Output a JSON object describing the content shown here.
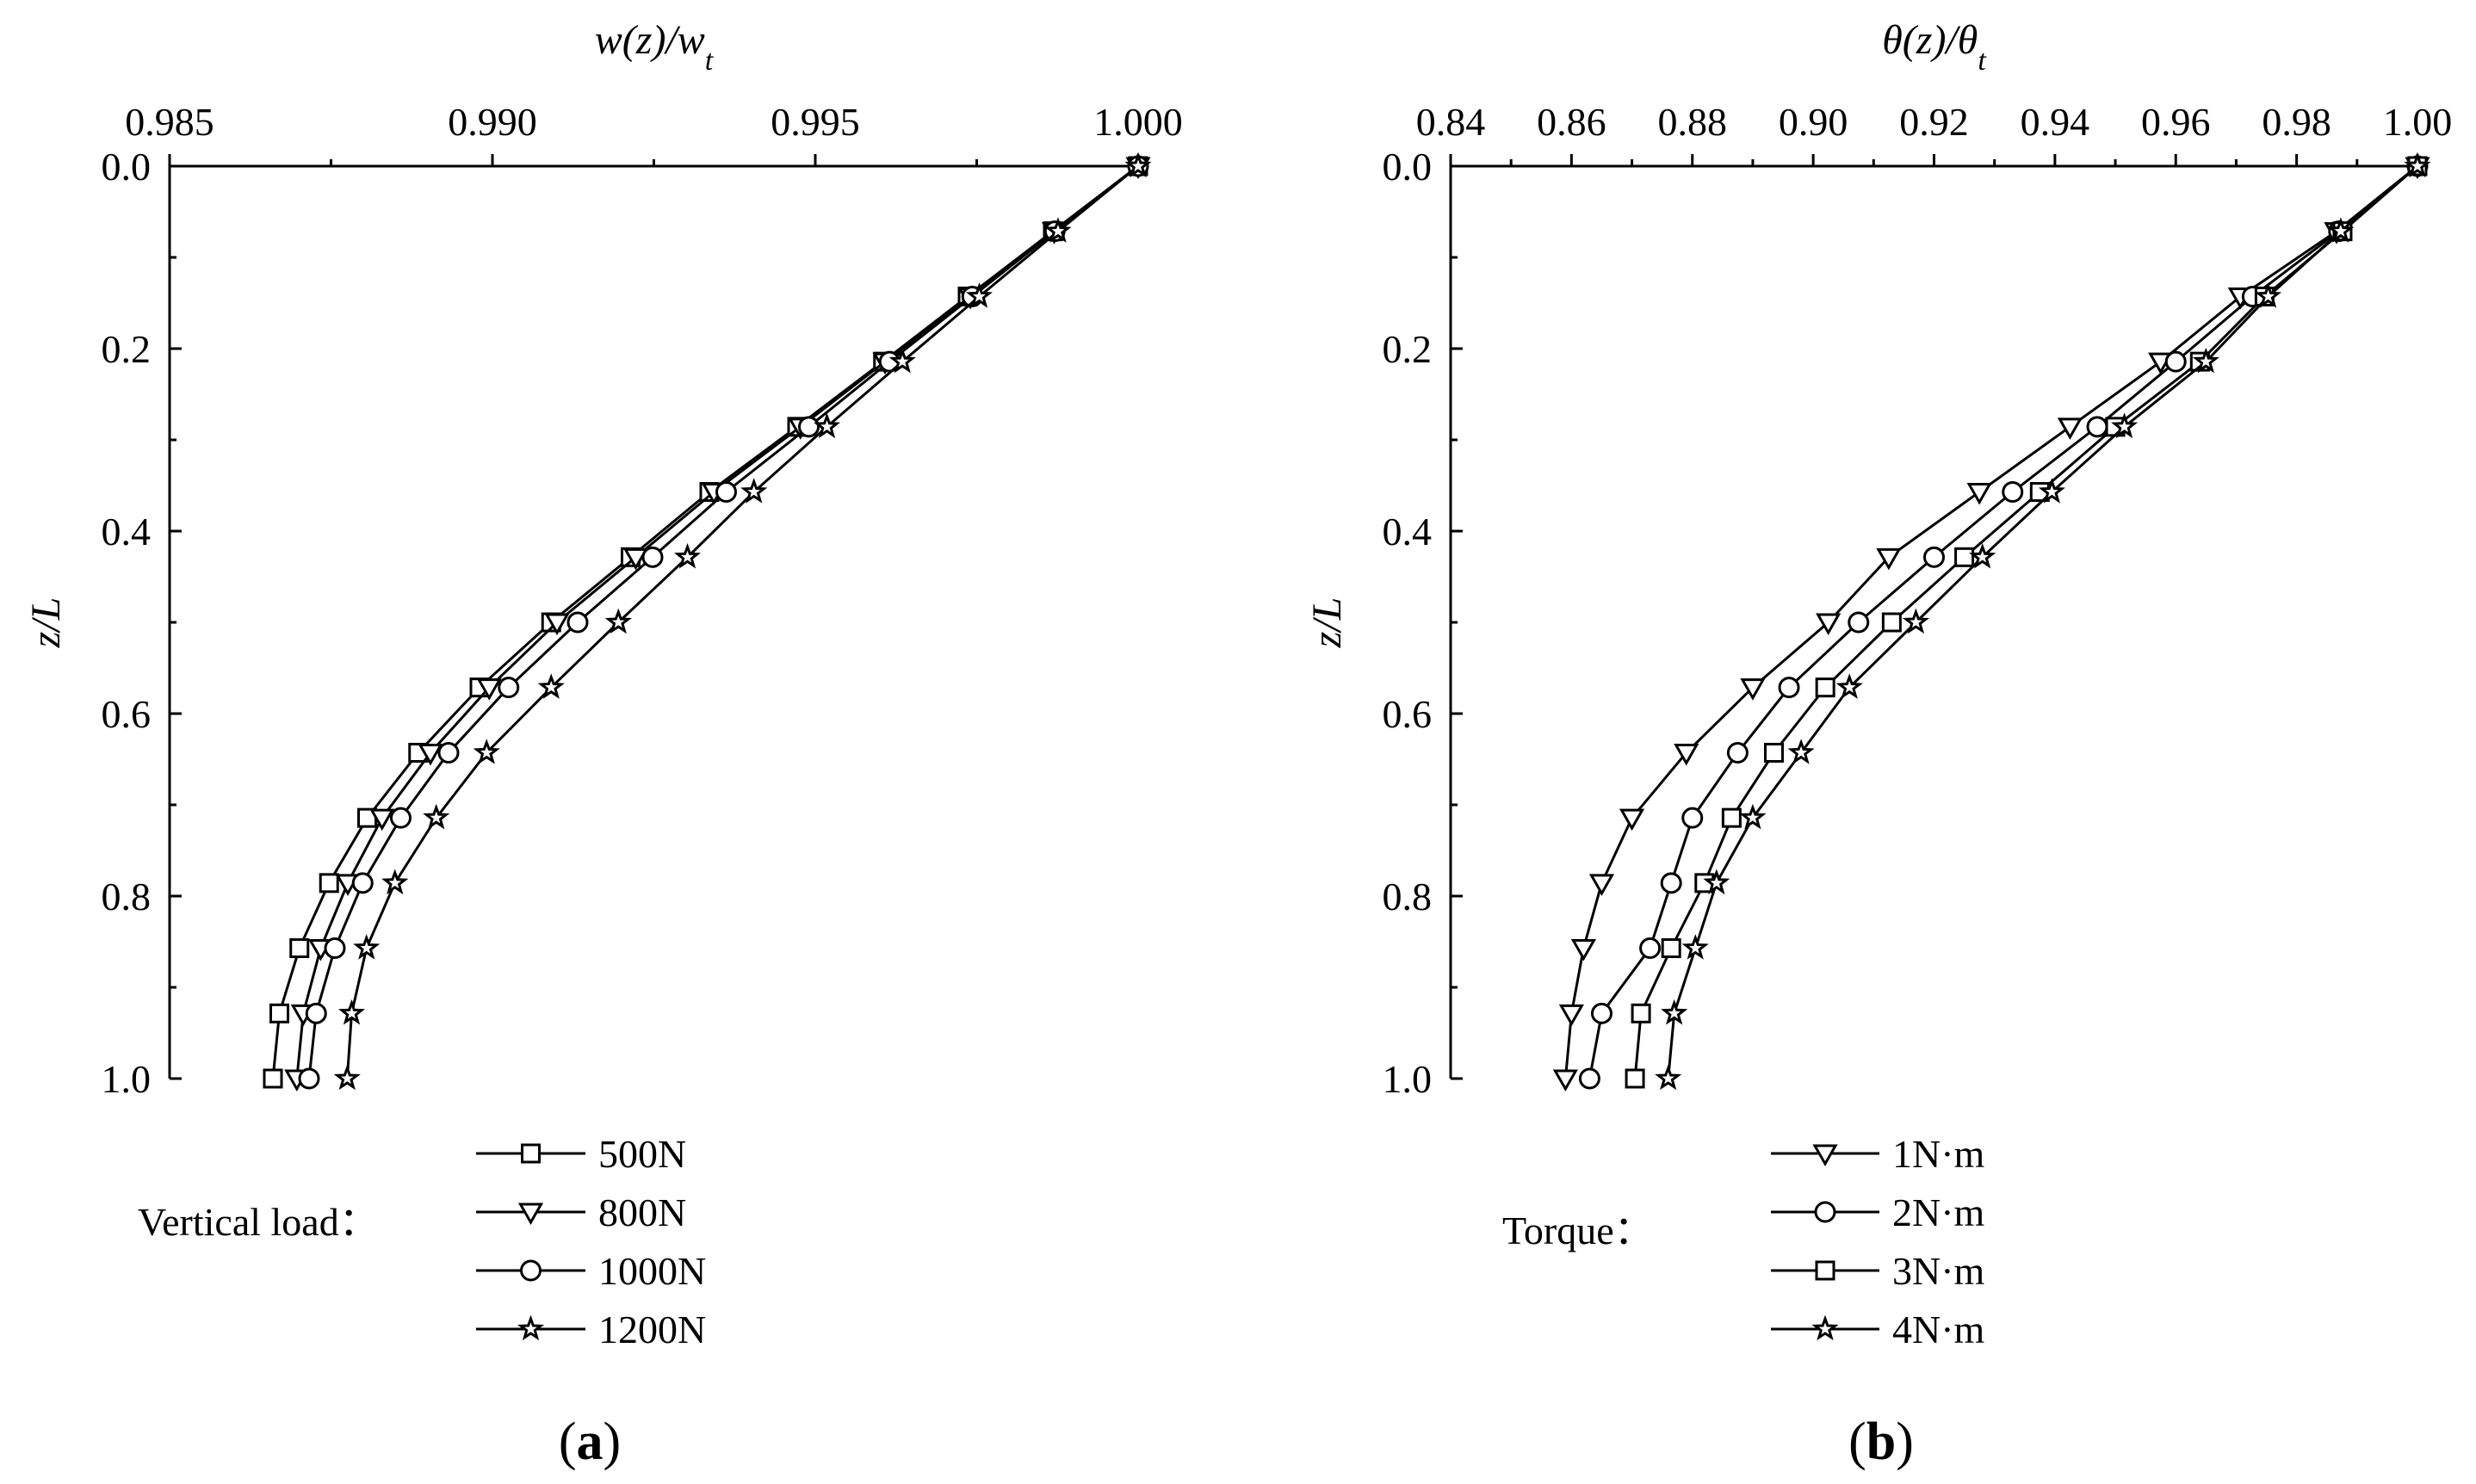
{
  "chart_data": [
    {
      "type": "line",
      "panel_label": "a",
      "xlabel": "w(z)/w",
      "xlabel_sub": "t",
      "ylabel": "z/L",
      "xlim": [
        0.985,
        1.0
      ],
      "ylim": [
        0.0,
        1.0
      ],
      "x_ticks": [
        0.985,
        0.99,
        0.995,
        1.0
      ],
      "x_tick_labels": [
        "0.985",
        "0.990",
        "0.995",
        "1.000"
      ],
      "y_ticks": [
        0.0,
        0.2,
        0.4,
        0.6,
        0.8,
        1.0
      ],
      "y_tick_labels": [
        "0.0",
        "0.2",
        "0.4",
        "0.6",
        "0.8",
        "1.0"
      ],
      "legend_title": "Vertical load：",
      "z": [
        0.0,
        0.0714,
        0.1429,
        0.2143,
        0.2857,
        0.3571,
        0.4286,
        0.5,
        0.5714,
        0.6429,
        0.7143,
        0.7857,
        0.8571,
        0.9286,
        1.0
      ],
      "series": [
        {
          "name": "500N",
          "marker": "square",
          "values": [
            1.0,
            0.99868,
            0.99736,
            0.99605,
            0.99472,
            0.99336,
            0.99214,
            0.99091,
            0.9898,
            0.98885,
            0.98806,
            0.98747,
            0.98701,
            0.9867,
            0.9866
          ]
        },
        {
          "name": " 800N",
          "marker": "triangle-down",
          "values": [
            1.0,
            0.9987,
            0.9974,
            0.99608,
            0.99477,
            0.99343,
            0.99222,
            0.991,
            0.98995,
            0.98904,
            0.98829,
            0.98776,
            0.98734,
            0.98707,
            0.98697
          ]
        },
        {
          "name": "1000N",
          "marker": "circle",
          "values": [
            1.0,
            0.99871,
            0.99743,
            0.99615,
            0.9949,
            0.99362,
            0.99248,
            0.99132,
            0.99025,
            0.98932,
            0.98858,
            0.98799,
            0.98756,
            0.98727,
            0.98716
          ]
        },
        {
          "name": "1200N",
          "marker": "star",
          "values": [
            1.0,
            0.99876,
            0.99754,
            0.99635,
            0.99518,
            0.99405,
            0.99302,
            0.99195,
            0.99091,
            0.98991,
            0.98913,
            0.98849,
            0.98805,
            0.98782,
            0.98775
          ]
        }
      ]
    },
    {
      "type": "line",
      "panel_label": "b",
      "xlabel": "θ(z)/θ",
      "xlabel_sub": "t",
      "ylabel": "z/L",
      "xlim": [
        0.84,
        1.0
      ],
      "ylim": [
        0.0,
        1.0
      ],
      "x_ticks": [
        0.84,
        0.86,
        0.88,
        0.9,
        0.92,
        0.94,
        0.96,
        0.98,
        1.0
      ],
      "x_tick_labels": [
        "0.84",
        "0.86",
        "0.88",
        "0.90",
        "0.92",
        "0.94",
        "0.96",
        "0.98",
        "1.00"
      ],
      "y_ticks": [
        0.0,
        0.2,
        0.4,
        0.6,
        0.8,
        1.0
      ],
      "y_tick_labels": [
        "0.0",
        "0.2",
        "0.4",
        "0.6",
        "0.8",
        "1.0"
      ],
      "legend_title": "Torque：",
      "z": [
        0.0,
        0.0714,
        0.1429,
        0.2143,
        0.2857,
        0.3571,
        0.4286,
        0.5,
        0.5714,
        0.6429,
        0.7143,
        0.7857,
        0.8571,
        0.9286,
        1.0
      ],
      "series": [
        {
          "name": "1N·m",
          "marker": "triangle-down",
          "values": [
            1.0,
            0.9866,
            0.9707,
            0.9575,
            0.9425,
            0.9275,
            0.9125,
            0.9025,
            0.89,
            0.879,
            0.87,
            0.865,
            0.862,
            0.86,
            0.859
          ]
        },
        {
          "name": "2N·m",
          "marker": "circle",
          "values": [
            1.0,
            0.987,
            0.9727,
            0.96,
            0.947,
            0.933,
            0.92,
            0.9075,
            0.896,
            0.8875,
            0.88,
            0.8765,
            0.873,
            0.865,
            0.863
          ]
        },
        {
          "name": "3N·m",
          "marker": "square",
          "values": [
            1.0,
            0.9876,
            0.9747,
            0.964,
            0.95,
            0.9375,
            0.925,
            0.913,
            0.902,
            0.8935,
            0.8865,
            0.882,
            0.8765,
            0.8715,
            0.8705
          ]
        },
        {
          "name": "4N·m",
          "marker": "star",
          "values": [
            1.0,
            0.9873,
            0.9753,
            0.965,
            0.9515,
            0.9395,
            0.928,
            0.917,
            0.906,
            0.898,
            0.89,
            0.884,
            0.8805,
            0.877,
            0.876
          ]
        }
      ]
    }
  ]
}
